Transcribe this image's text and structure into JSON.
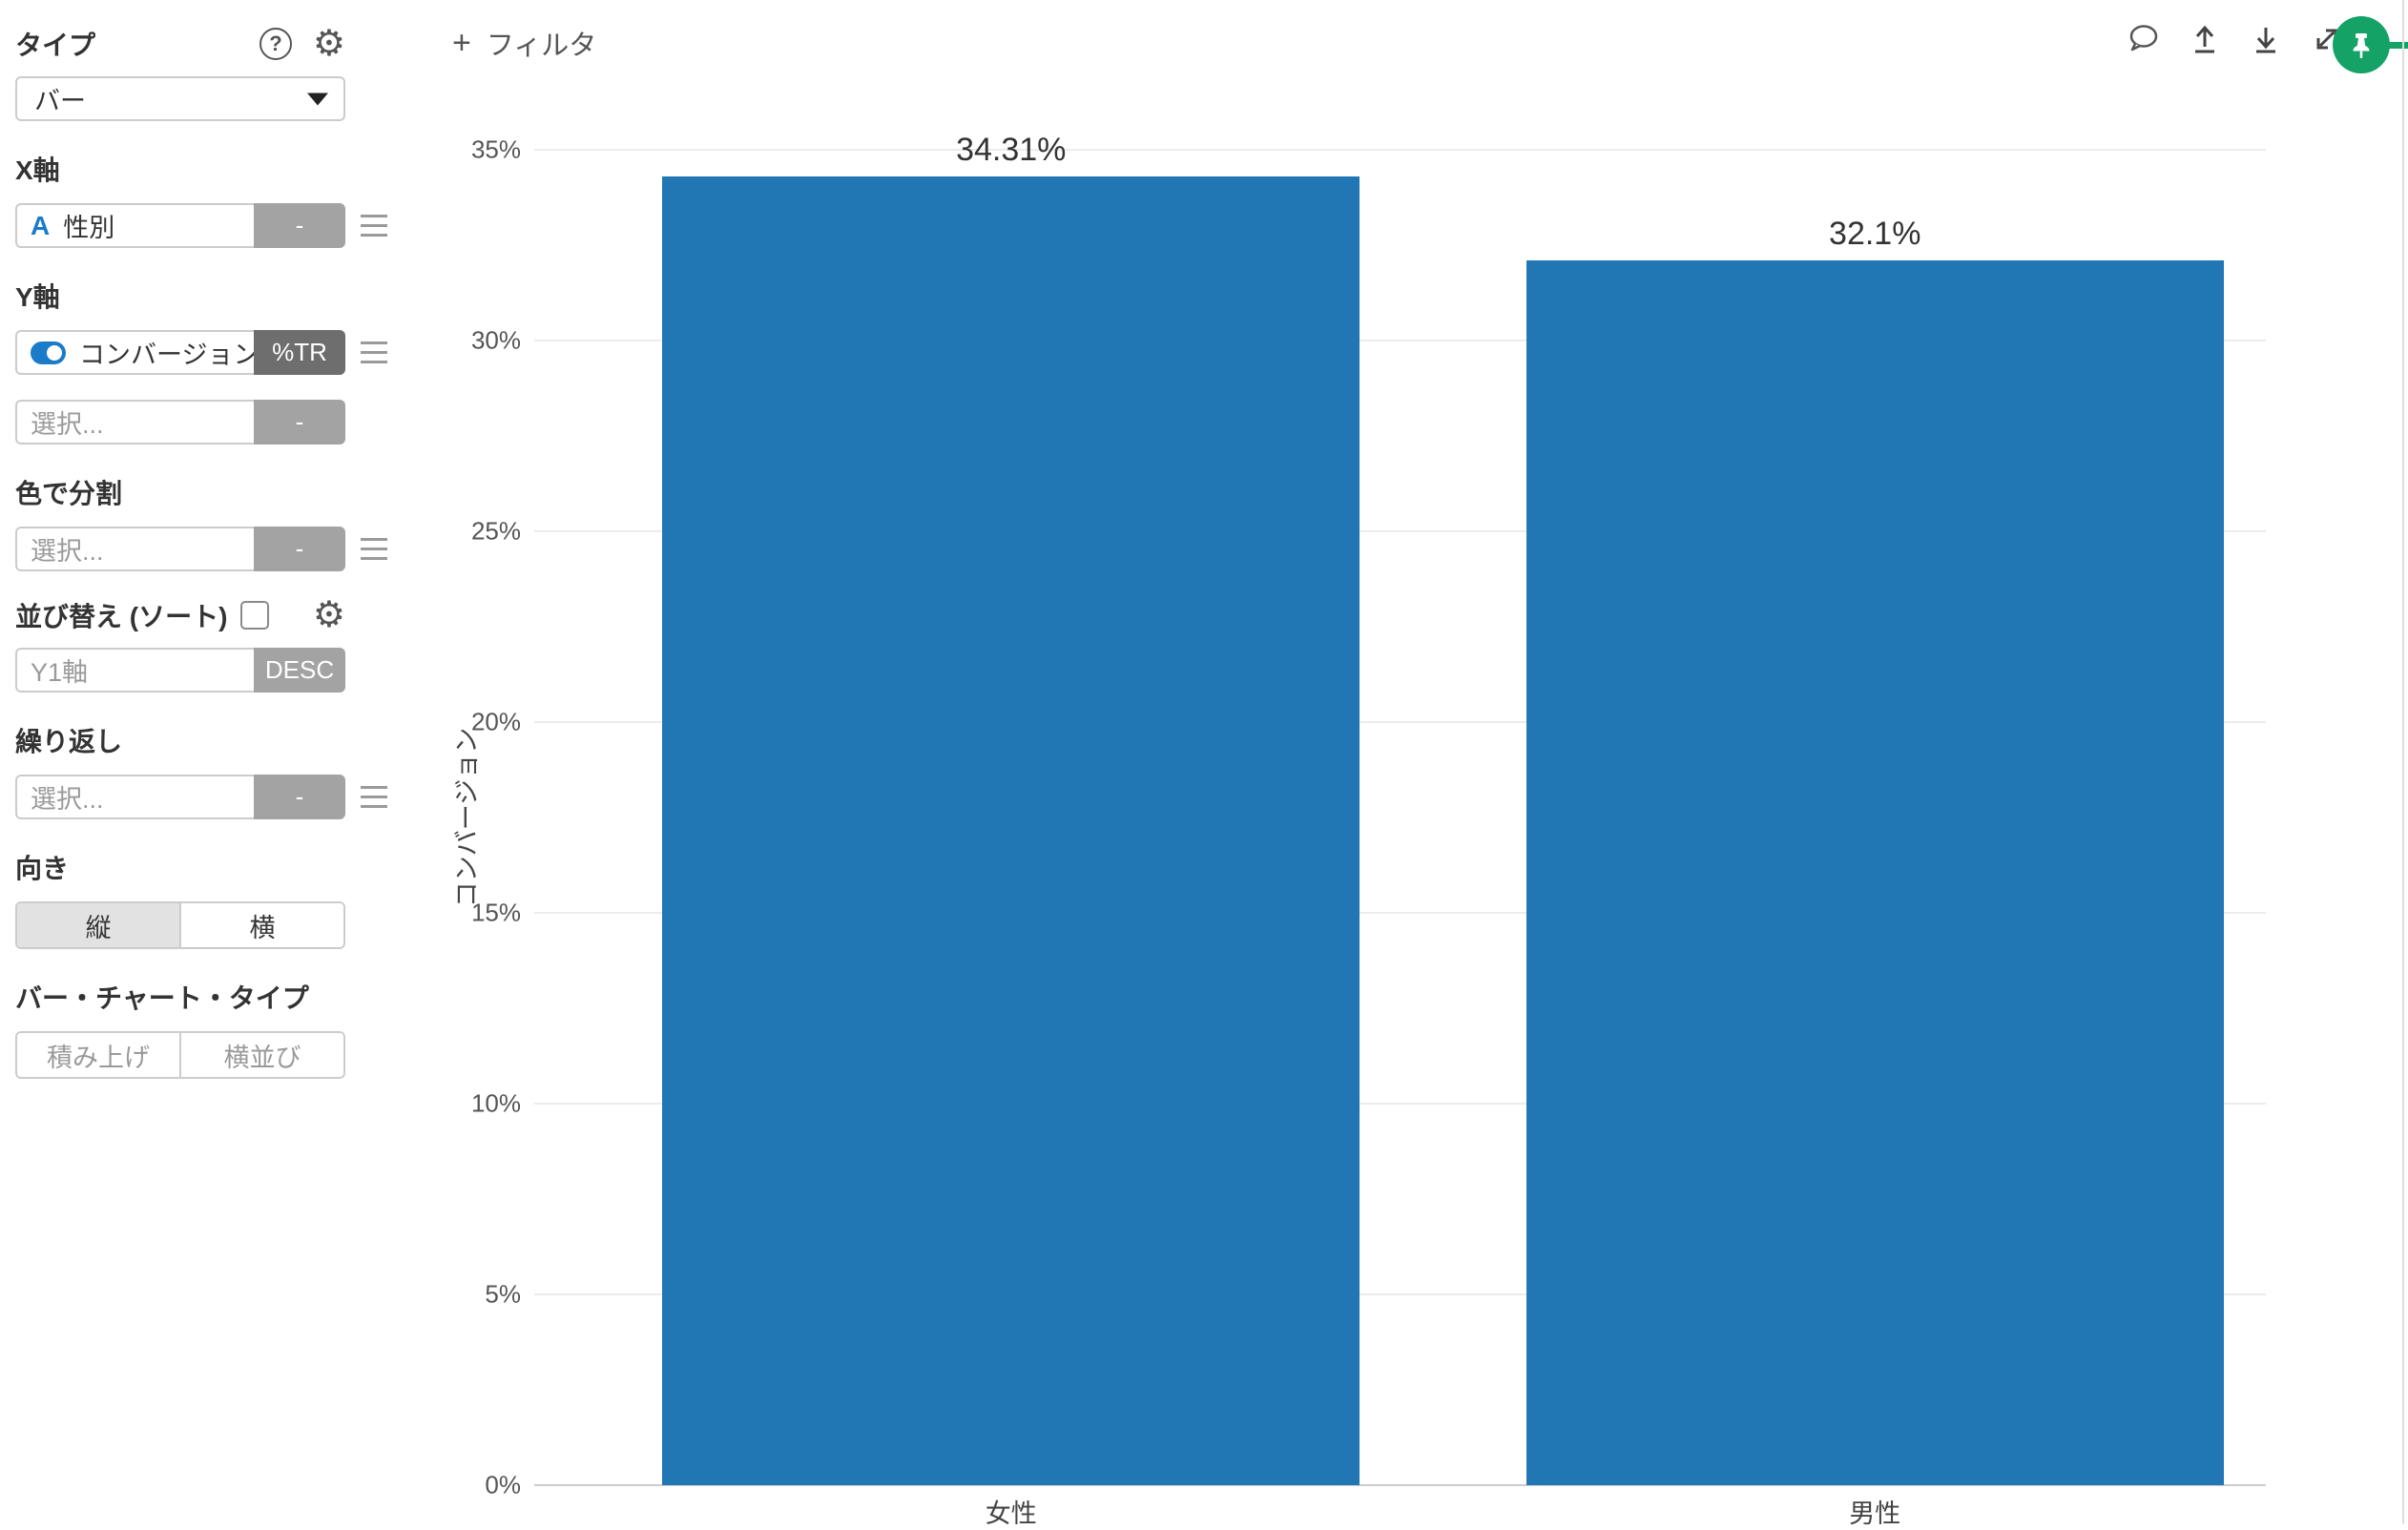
{
  "sidebar": {
    "type": {
      "label": "タイプ",
      "value": "バー"
    },
    "x_axis": {
      "label": "X軸",
      "field": "性別",
      "field_type": "A",
      "agg": "-"
    },
    "y_axis": {
      "label": "Y軸",
      "field": "コンバージョン",
      "agg": "%TR",
      "extra_placeholder": "選択...",
      "extra_agg": "-"
    },
    "color": {
      "label": "色で分割",
      "placeholder": "選択...",
      "agg": "-"
    },
    "sort": {
      "label": "並び替え (ソート)",
      "field_placeholder": "Y1軸",
      "order": "DESC"
    },
    "repeat": {
      "label": "繰り返し",
      "placeholder": "選択...",
      "agg": "-"
    },
    "orientation": {
      "label": "向き",
      "options": [
        "縦",
        "横"
      ],
      "selected": "縦"
    },
    "bar_chart_type": {
      "label": "バー・チャート・タイプ",
      "options": [
        "積み上げ",
        "横並び"
      ]
    },
    "help_glyph": "?",
    "gear_glyph": "⚙"
  },
  "topbar": {
    "plus": "+",
    "filter_label": "フィルタ"
  },
  "chart_data": {
    "type": "bar",
    "categories": [
      "女性",
      "男性"
    ],
    "values": [
      34.31,
      32.1
    ],
    "value_labels": [
      "34.31%",
      "32.1%"
    ],
    "title": "",
    "xlabel": "",
    "ylabel": "コンバージョン",
    "ylim": [
      0,
      35
    ],
    "yticks": [
      0,
      5,
      10,
      15,
      20,
      25,
      30,
      35
    ],
    "ytick_labels": [
      "0%",
      "5%",
      "10%",
      "15%",
      "20%",
      "25%",
      "30%",
      "35%"
    ],
    "legend": "none",
    "grid": "horizontal",
    "bar_color": "#2077b4"
  },
  "colors": {
    "accent_blue": "#1a7cc9",
    "bar_blue": "#2077b4",
    "avatar_green": "#14a266",
    "agg_gray": "#a3a3a3",
    "agg_dark": "#6e6e6e"
  }
}
